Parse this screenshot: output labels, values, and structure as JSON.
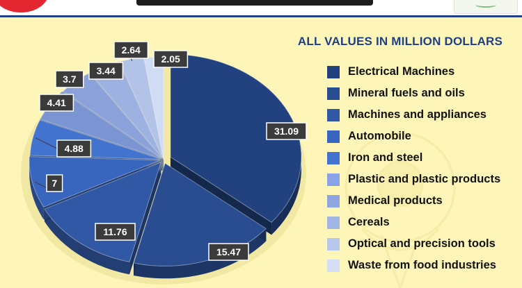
{
  "header": {
    "left_logo_icon": "red-circle-logo-icon",
    "right_logo_icon": "partner-logo-icon"
  },
  "background_watermark_icon": "map-pin-sun-icon",
  "units_note": "ALL VALUES IN MILLION DOLLARS",
  "colors": {
    "background": "#fdf6b8",
    "header_rule": "#1d3f86",
    "units_text": "#1d3f86",
    "label_box": "#3b3b3b"
  },
  "chart_data": {
    "type": "pie",
    "style": "3d-exploded",
    "legend_placement": "right",
    "categories": [
      "Electrical Machines",
      "Mineral fuels and oils",
      "Machines and appliances",
      "Automobile",
      "Iron and steel",
      "Plastic and plastic products",
      "Medical products",
      "Cereals",
      "Optical and precision tools",
      "Waste from food industries"
    ],
    "values": [
      31.09,
      15.47,
      11.76,
      7,
      4.88,
      4.41,
      3.7,
      3.44,
      2.64,
      2.05
    ],
    "data_labels": [
      "31.09",
      "15.47",
      "11.76",
      "7",
      "4.88",
      "4.41",
      "3.7",
      "3.44",
      "2.64",
      "2.05"
    ],
    "colors": [
      "#22427f",
      "#2a4d91",
      "#3058a5",
      "#3865bd",
      "#4173cf",
      "#7b95d3",
      "#8aa2d9",
      "#9db2e0",
      "#b3c3e8",
      "#d0dcf3"
    ],
    "legend_colors": [
      "#22427f",
      "#2a4d91",
      "#3058a5",
      "#3865bd",
      "#4173cf",
      "#8aa2e6",
      "#8fa5df",
      "#a2b6e6",
      "#b8c7ee",
      "#d2ddf6"
    ]
  }
}
